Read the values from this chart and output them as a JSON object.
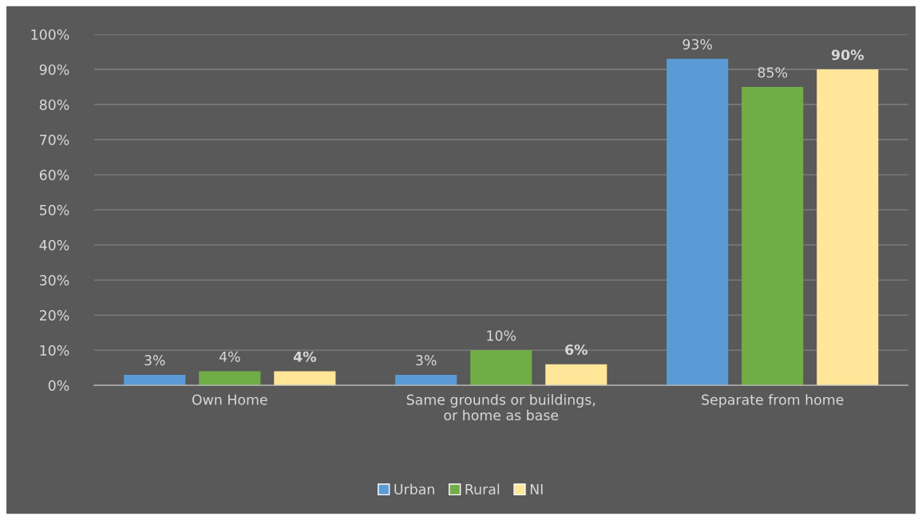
{
  "chart_data": {
    "type": "bar",
    "categories": [
      "Own Home",
      "Same grounds or buildings,\nor home as base",
      "Separate from home"
    ],
    "series": [
      {
        "name": "Urban",
        "color": "#5b9bd5",
        "values": [
          3,
          3,
          93
        ],
        "value_labels": [
          "3%",
          "3%",
          "93%"
        ]
      },
      {
        "name": "Rural",
        "color": "#70ad47",
        "values": [
          4,
          10,
          85
        ],
        "value_labels": [
          "4%",
          "10%",
          "85%"
        ]
      },
      {
        "name": "NI",
        "color": "#ffe699",
        "values": [
          4,
          6,
          90
        ],
        "value_labels": [
          "4%",
          "6%",
          "90%"
        ]
      }
    ],
    "ylim": [
      0,
      100
    ],
    "yticks": [
      {
        "value": 0,
        "label": "0%"
      },
      {
        "value": 10,
        "label": "10%"
      },
      {
        "value": 20,
        "label": "20%"
      },
      {
        "value": 30,
        "label": "30%"
      },
      {
        "value": 40,
        "label": "40%"
      },
      {
        "value": 50,
        "label": "50%"
      },
      {
        "value": 60,
        "label": "60%"
      },
      {
        "value": 70,
        "label": "70%"
      },
      {
        "value": 80,
        "label": "80%"
      },
      {
        "value": 90,
        "label": "90%"
      },
      {
        "value": 100,
        "label": "100%"
      }
    ],
    "grid": "y",
    "legend": "bottom"
  }
}
